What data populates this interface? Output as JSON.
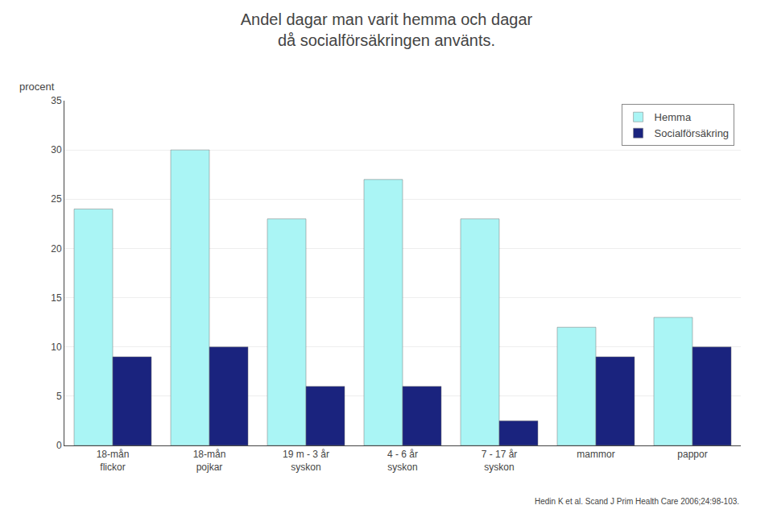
{
  "chart_data": {
    "type": "bar",
    "title": "Andel dagar man varit hemma och dagar\ndå socialförsäkringen använts.",
    "ylabel": "procent",
    "categories": [
      "18-mån\nflickor",
      "18-mån\npojkar",
      "19 m - 3 år\nsyskon",
      "4 - 6 år\nsyskon",
      "7 - 17 år\nsyskon",
      "mammor",
      "pappor"
    ],
    "series": [
      {
        "name": "Hemma",
        "color": "#aaf5f5",
        "values": [
          24,
          30,
          23,
          27,
          23,
          12,
          13
        ]
      },
      {
        "name": "Socialförsäkring",
        "color": "#1a237e",
        "values": [
          9,
          10,
          6,
          6,
          2.5,
          9,
          10
        ]
      }
    ],
    "ylim": [
      0,
      35
    ],
    "yticks": [
      0,
      5,
      10,
      15,
      20,
      25,
      30,
      35
    ],
    "grid": true,
    "legend": "upper right",
    "annotations": [
      "Hedin K et al. Scand J Prim Health Care 2006;24:98-103."
    ]
  }
}
